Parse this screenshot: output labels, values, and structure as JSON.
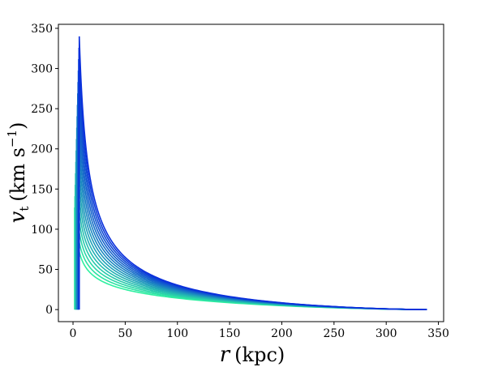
{
  "chart_data": {
    "type": "line",
    "title": "",
    "xlabel": {
      "symbol": "r",
      "unit": "(kpc)"
    },
    "ylabel": {
      "symbol": "v",
      "subscript": "t",
      "unit_open": "(km s",
      "superscript": "−1",
      "unit_close": ")"
    },
    "xlim": [
      -14,
      355
    ],
    "ylim": [
      -15,
      355
    ],
    "xticks": [
      0,
      50,
      100,
      150,
      200,
      250,
      300,
      350
    ],
    "yticks": [
      0,
      50,
      100,
      150,
      200,
      250,
      300,
      350
    ],
    "grid": false,
    "legend": "none",
    "colormap": {
      "start": "#2ef0a0",
      "end": "#0a2fdc"
    },
    "series_family": {
      "count": 16,
      "peak_r_first": 1.5,
      "peak_r_last": 6.0,
      "peak_v_first": 127,
      "peak_v_last": 340,
      "v_at_r50_first": 25,
      "v_at_r50_last": 65,
      "end_r": 339,
      "end_v": 0
    }
  }
}
